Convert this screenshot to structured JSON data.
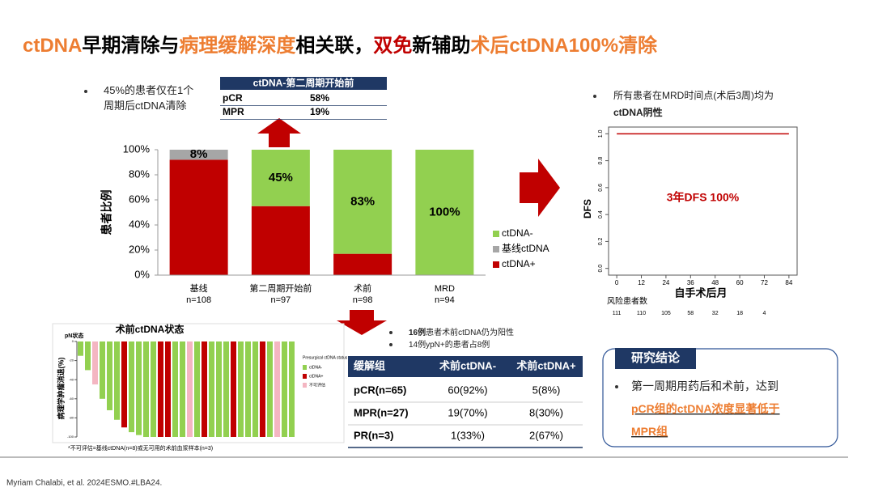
{
  "title": [
    {
      "text": "ctDNA",
      "color": "#ed7d31"
    },
    {
      "text": "早期清除与",
      "color": "#000000"
    },
    {
      "text": "病理缓解深度",
      "color": "#ed7d31"
    },
    {
      "text": "相关联，",
      "color": "#000000"
    },
    {
      "text": "双免",
      "color": "#c00000"
    },
    {
      "text": "新辅助",
      "color": "#000000"
    },
    {
      "text": "术后ctDNA100%清除",
      "color": "#ed7d31"
    }
  ],
  "left_note": [
    [
      {
        "text": "45%的患者仅在1个"
      }
    ],
    [
      {
        "text": "周期后ctDNA清除"
      }
    ]
  ],
  "second_cycle_table": {
    "header": "ctDNA-第二周期开始前",
    "rows": [
      [
        "pCR",
        "58%"
      ],
      [
        "MPR",
        "19%"
      ]
    ]
  },
  "dfs_note": [
    [
      {
        "text": "所有患者在MRD时间点(术后3周)均为"
      }
    ],
    [
      {
        "text": "ctDNA阴性",
        "bold": true
      }
    ]
  ],
  "middle_notes": [
    [
      {
        "text": "16例",
        "bold": true
      },
      {
        "text": "患者术前ctDNA仍为阳性"
      }
    ],
    [
      {
        "text": "14例ypN+的患者占8例"
      }
    ]
  ],
  "response_table": {
    "header": [
      "缓解组",
      "术前ctDNA-",
      "术前ctDNA+"
    ],
    "rows": [
      [
        "pCR(n=65)",
        "60(92%)",
        "5(8%)"
      ],
      [
        "MPR(n=27)",
        "19(70%)",
        "8(30%)"
      ],
      [
        "PR(n=3)",
        "1(33%)",
        "2(67%)"
      ]
    ]
  },
  "conclusion": {
    "title": "研究结论",
    "lines": [
      [
        {
          "text": "第一周期用药后和术前，达到"
        }
      ],
      [
        {
          "text": "pCR组的ctDNA浓度显著低于",
          "color": "#ed7d31",
          "bold": true
        }
      ],
      [
        {
          "text": "MPR组",
          "color": "#ed7d31",
          "bold": true
        }
      ]
    ]
  },
  "citation": "Myriam Chalabi, et al. 2024ESMO.#LBA24.",
  "chart_data": [
    {
      "type": "stacked-bar",
      "y_label": "患者比例",
      "categories": [
        "基线",
        "第二周期开始前",
        "术前",
        "MRD"
      ],
      "subcategories": [
        "n=108",
        "n=97",
        "n=98",
        "n=94"
      ],
      "ylim": [
        0,
        100
      ],
      "yticks": [
        {
          "value": 0,
          "label": "0%"
        },
        {
          "value": 20,
          "label": "20%"
        },
        {
          "value": 40,
          "label": "40%"
        },
        {
          "value": 60,
          "label": "60%"
        },
        {
          "value": 80,
          "label": "80%"
        },
        {
          "value": 100,
          "label": "100%"
        }
      ],
      "grid": false,
      "series": [
        {
          "name": "ctDNA-",
          "color": "#92d050",
          "values": [
            0,
            45,
            83,
            100
          ],
          "value_labels": [
            null,
            "45%",
            "83%",
            "100%"
          ]
        },
        {
          "name": "基线ctDNA",
          "color": "#a6a6a6",
          "values": [
            8,
            0,
            0,
            0
          ],
          "value_labels": [
            "8%",
            null,
            null,
            null
          ]
        },
        {
          "name": "ctDNA+",
          "color": "#c00000",
          "values": [
            92,
            55,
            17,
            0
          ],
          "value_labels": [
            null,
            null,
            null,
            null
          ]
        }
      ]
    },
    {
      "type": "line",
      "x_label": "自手术后月",
      "y_label": "DFS",
      "annotation": "3年DFS 100%",
      "x": [
        0,
        84
      ],
      "xlim": [
        -4,
        88
      ],
      "xticks": [
        0,
        12,
        24,
        36,
        48,
        60,
        72,
        84
      ],
      "ylim": [
        -0.05,
        1.05
      ],
      "yticks": [
        {
          "value": 0,
          "label": "0.0"
        },
        0.2,
        0.4,
        0.6,
        0.8,
        {
          "value": 1,
          "label": "1.0"
        }
      ],
      "series": [
        {
          "color": "#c00000",
          "values": [
            1,
            1
          ]
        }
      ],
      "risk_table": {
        "title": "风险患者数",
        "values": [
          111,
          110,
          105,
          58,
          32,
          18,
          4
        ]
      }
    },
    {
      "type": "waterfall",
      "title": "术前ctDNA状态",
      "y_label": "病理学肿瘤消退(%)",
      "top_label": "pN状态",
      "legend_title": "Presurgical ctDNA status",
      "ylim": [
        -100,
        0
      ],
      "yticks": [
        0,
        -20,
        -40,
        -60,
        -80,
        -100
      ],
      "footnote": "*不可评估=基线ctDNA(n=8)或无可用的术前血浆样本(n=3)",
      "series": [
        {
          "name": "ctDNA-",
          "color": "#92d050",
          "values": [
            -15,
            -30,
            null,
            -60,
            -72,
            -82,
            null,
            -95,
            -98,
            -100,
            -100,
            null,
            null,
            -100,
            -100,
            null,
            -100,
            null,
            -100,
            -100,
            -100,
            null,
            -100,
            -100,
            -100,
            null,
            -100,
            null,
            -100,
            -100
          ]
        },
        {
          "name": "ctDNA+",
          "color": "#c00000",
          "values": [
            null,
            null,
            null,
            null,
            null,
            null,
            -90,
            null,
            null,
            null,
            null,
            -100,
            -100,
            null,
            null,
            null,
            null,
            -100,
            null,
            null,
            null,
            -100,
            null,
            null,
            null,
            -100,
            null,
            null,
            null,
            null
          ]
        },
        {
          "name": "不可评估",
          "color": "#f4b6c2",
          "values": [
            null,
            null,
            -45,
            null,
            null,
            null,
            null,
            null,
            null,
            null,
            null,
            null,
            null,
            null,
            null,
            -100,
            null,
            null,
            null,
            null,
            null,
            null,
            null,
            null,
            null,
            null,
            null,
            -100,
            null,
            null
          ]
        }
      ]
    }
  ]
}
